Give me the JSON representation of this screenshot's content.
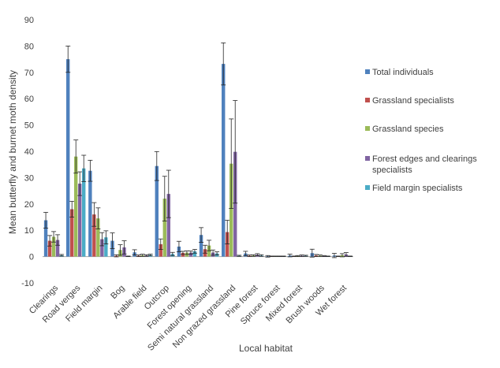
{
  "colors": {
    "total": "#4F81BD",
    "grass_spec": "#C0504D",
    "grass_species": "#9BBB59",
    "forest": "#8064A2",
    "field": "#4BACC6"
  },
  "chart_data": {
    "type": "bar",
    "title": "",
    "xlabel": "Local habitat",
    "ylabel": "Mean butterfly and burnet moth density",
    "ylim": [
      -10,
      90
    ],
    "yticks": [
      -10,
      0,
      10,
      20,
      30,
      40,
      50,
      60,
      70,
      80,
      90
    ],
    "grid": false,
    "legend_position": "right",
    "categories": [
      "Clearings",
      "Road verges",
      "Field margin",
      "Bog",
      "Arable field",
      "Outcrop",
      "Forest opening",
      "Semi natural grassland",
      "Non grazed grassland",
      "Pine forest",
      "Spruce forest",
      "Mixed forest",
      "Brush woods",
      "Wet forest"
    ],
    "series": [
      {
        "name": "Total individuals",
        "color_key": "total",
        "values": [
          13.8,
          75,
          32.6,
          6,
          1.6,
          34.4,
          3.8,
          8.2,
          73.2,
          1.2,
          0.1,
          0.4,
          1.3,
          0.4
        ],
        "errors": [
          3,
          5,
          4,
          3,
          1,
          5.5,
          2,
          2.8,
          8,
          0.8,
          0.3,
          0.5,
          1.5,
          0.8
        ]
      },
      {
        "name": "Grassland specialists",
        "color_key": "grass_spec",
        "values": [
          6,
          18,
          16,
          0.3,
          0.3,
          4.7,
          1.4,
          2.8,
          9.3,
          0.3,
          0.1,
          0.1,
          0.4,
          0.1
        ],
        "errors": [
          2,
          3,
          4.5,
          0.4,
          0.3,
          2,
          0.6,
          1.5,
          4.5,
          0.3,
          0.1,
          0.1,
          0.4,
          0.1
        ]
      },
      {
        "name": "Grassland species",
        "color_key": "grass_species",
        "values": [
          7.5,
          38,
          14.5,
          2.5,
          0.5,
          22,
          1.5,
          4.2,
          35.3,
          0.4,
          0.1,
          0.2,
          0.3,
          0.5
        ],
        "errors": [
          2,
          6.3,
          4,
          2,
          0.4,
          8.5,
          0.7,
          2,
          17,
          0.3,
          0.1,
          0.2,
          0.3,
          0.6
        ]
      },
      {
        "name": "Forest edges and clearings specialists",
        "color_key": "forest",
        "values": [
          6.3,
          27.7,
          6.6,
          3.5,
          0.4,
          23.8,
          1.5,
          1.5,
          39.8,
          0.7,
          0.1,
          0.3,
          0.2,
          0.8
        ],
        "errors": [
          2,
          4.5,
          2.5,
          2.5,
          0.3,
          9,
          0.6,
          1,
          19.5,
          0.4,
          0.1,
          0.3,
          0.2,
          0.7
        ]
      },
      {
        "name": "Field margin specialists",
        "color_key": "field",
        "values": [
          0.5,
          33.5,
          7.3,
          0.1,
          0.6,
          1,
          2,
          1.2,
          0.3,
          0.4,
          0.1,
          0.3,
          0.1,
          0.1
        ],
        "errors": [
          0.3,
          5,
          2.5,
          0.1,
          0.3,
          0.6,
          0.7,
          0.6,
          0.2,
          0.3,
          0.1,
          0.2,
          0.1,
          0.1
        ]
      }
    ]
  }
}
